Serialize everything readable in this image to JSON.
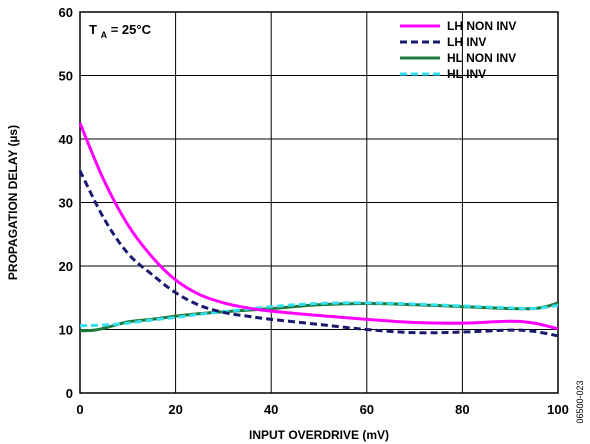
{
  "chart_data": {
    "type": "line",
    "xlabel": "INPUT OVERDRIVE (mV)",
    "ylabel": "PROPAGATION DELAY (µs)",
    "xlim": [
      0,
      100
    ],
    "ylim": [
      0,
      60
    ],
    "x_ticks": [
      "0",
      "20",
      "40",
      "60",
      "80",
      "100"
    ],
    "y_ticks": [
      "0",
      "10",
      "20",
      "30",
      "40",
      "50",
      "60"
    ],
    "grid": true,
    "legend_position": "top-right",
    "annotation": {
      "main": "T",
      "subscript": "A",
      "rest": " = 25°C"
    },
    "figure_id": "06500-023",
    "series": [
      {
        "name": "LH NON INV",
        "color": "#ff00ff",
        "dash": "solid",
        "x": [
          0,
          5,
          10,
          15,
          20,
          25,
          30,
          35,
          40,
          50,
          60,
          70,
          80,
          90,
          95,
          100
        ],
        "y": [
          42.5,
          33.5,
          26.5,
          21.5,
          17.8,
          15.5,
          14.2,
          13.4,
          12.9,
          12.2,
          11.6,
          11.1,
          11.0,
          11.3,
          11.0,
          10.1
        ]
      },
      {
        "name": "LH INV",
        "color": "#1a1a6e",
        "dash": "dashed",
        "x": [
          0,
          5,
          10,
          15,
          20,
          25,
          30,
          35,
          40,
          50,
          60,
          70,
          80,
          90,
          95,
          100
        ],
        "y": [
          35.0,
          27.5,
          22.0,
          18.7,
          15.8,
          13.8,
          12.7,
          12.1,
          11.6,
          10.8,
          10.0,
          9.5,
          9.6,
          9.9,
          9.7,
          9.0
        ]
      },
      {
        "name": "HL NON INV",
        "color": "#1e7a3c",
        "dash": "solid",
        "x": [
          0,
          3,
          6,
          10,
          15,
          20,
          25,
          30,
          40,
          50,
          60,
          70,
          80,
          90,
          95,
          98,
          100
        ],
        "y": [
          9.8,
          9.9,
          10.4,
          11.2,
          11.6,
          12.1,
          12.5,
          12.8,
          13.3,
          13.9,
          14.1,
          13.9,
          13.6,
          13.3,
          13.3,
          13.7,
          14.2
        ]
      },
      {
        "name": "HL INV",
        "color": "#33e0f0",
        "dash": "dashed",
        "x": [
          0,
          5,
          10,
          15,
          20,
          25,
          30,
          40,
          50,
          60,
          70,
          80,
          90,
          95,
          100
        ],
        "y": [
          10.6,
          10.7,
          11.0,
          11.5,
          11.9,
          12.4,
          12.8,
          13.6,
          14.1,
          14.2,
          14.0,
          13.7,
          13.4,
          13.3,
          13.8
        ]
      }
    ]
  }
}
